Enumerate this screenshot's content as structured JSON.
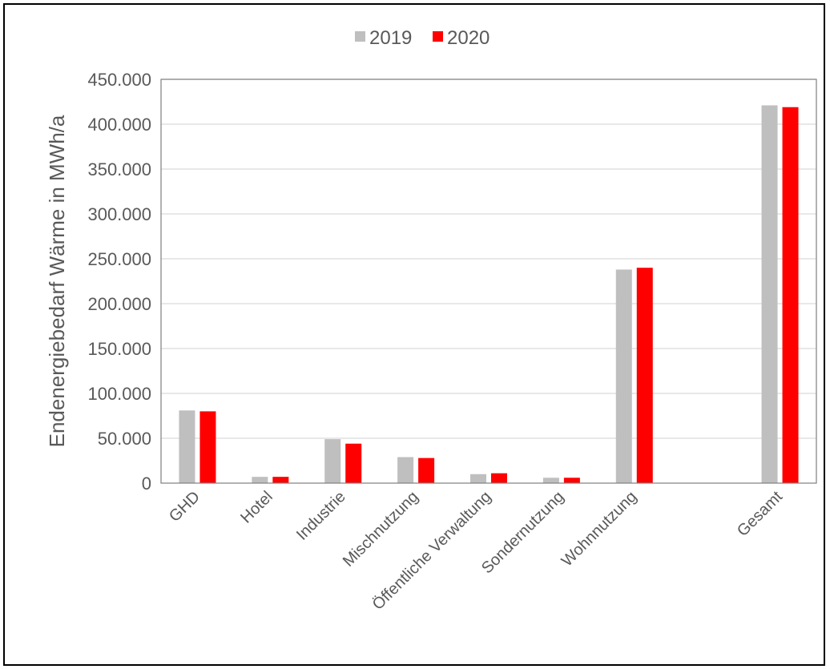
{
  "chart_data": {
    "type": "bar",
    "title": "",
    "xlabel": "",
    "ylabel": "Endenergiebedarf Wärme in MWh/a",
    "ylim": [
      0,
      450000
    ],
    "yticks": [
      0,
      50000,
      100000,
      150000,
      200000,
      250000,
      300000,
      350000,
      400000,
      450000
    ],
    "ytick_labels": [
      "0",
      "50.000",
      "100.000",
      "150.000",
      "200.000",
      "250.000",
      "300.000",
      "350.000",
      "400.000",
      "450.000"
    ],
    "categories": [
      "GHD",
      "Hotel",
      "Industrie",
      "Mischnutzung",
      "Öffentliche Verwaltung",
      "Sondernutzung",
      "Wohnnutzung",
      "",
      "Gesamt"
    ],
    "series": [
      {
        "name": "2019",
        "color": "#bfbfbf",
        "values": [
          81000,
          7000,
          49000,
          29000,
          10000,
          6000,
          238000,
          null,
          421000
        ]
      },
      {
        "name": "2020",
        "color": "#ff0000",
        "values": [
          80000,
          7000,
          44000,
          28000,
          11000,
          6000,
          240000,
          null,
          419000
        ]
      }
    ],
    "grid": true,
    "legend_position": "top-center"
  }
}
